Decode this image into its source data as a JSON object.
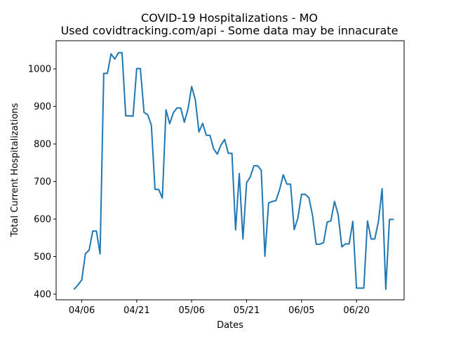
{
  "chart_data": {
    "type": "line",
    "title": "COVID-19 Hospitalizations - MO",
    "subtitle": "Used covidtracking.com/api - Some data may be innacurate",
    "xlabel": "Dates",
    "ylabel": "Total Current Hospitalizations",
    "x_ticks": [
      {
        "date": "2020-04-06",
        "label": "04/06"
      },
      {
        "date": "2020-04-21",
        "label": "04/21"
      },
      {
        "date": "2020-05-06",
        "label": "05/06"
      },
      {
        "date": "2020-05-21",
        "label": "05/21"
      },
      {
        "date": "2020-06-05",
        "label": "06/05"
      },
      {
        "date": "2020-06-20",
        "label": "06/20"
      }
    ],
    "y_ticks": [
      400,
      500,
      600,
      700,
      800,
      900,
      1000
    ],
    "xlim": [
      "2020-03-30",
      "2020-07-03"
    ],
    "ylim": [
      385,
      1075
    ],
    "grid": false,
    "line_color": "#1f77b4",
    "series": [
      {
        "points": [
          [
            "2020-04-04",
            414
          ],
          [
            "2020-04-05",
            425
          ],
          [
            "2020-04-06",
            438
          ],
          [
            "2020-04-07",
            508
          ],
          [
            "2020-04-08",
            517
          ],
          [
            "2020-04-09",
            568
          ],
          [
            "2020-04-10",
            568
          ],
          [
            "2020-04-11",
            507
          ],
          [
            "2020-04-12",
            988
          ],
          [
            "2020-04-13",
            988
          ],
          [
            "2020-04-14",
            1040
          ],
          [
            "2020-04-15",
            1026
          ],
          [
            "2020-04-16",
            1043
          ],
          [
            "2020-04-17",
            1043
          ],
          [
            "2020-04-18",
            875
          ],
          [
            "2020-04-19",
            875
          ],
          [
            "2020-04-20",
            874
          ],
          [
            "2020-04-21",
            1001
          ],
          [
            "2020-04-22",
            1001
          ],
          [
            "2020-04-23",
            884
          ],
          [
            "2020-04-24",
            878
          ],
          [
            "2020-04-25",
            850
          ],
          [
            "2020-04-26",
            679
          ],
          [
            "2020-04-27",
            679
          ],
          [
            "2020-04-28",
            656
          ],
          [
            "2020-04-29",
            891
          ],
          [
            "2020-04-30",
            854
          ],
          [
            "2020-05-01",
            883
          ],
          [
            "2020-05-02",
            896
          ],
          [
            "2020-05-03",
            896
          ],
          [
            "2020-05-04",
            858
          ],
          [
            "2020-05-05",
            893
          ],
          [
            "2020-05-06",
            953
          ],
          [
            "2020-05-07",
            918
          ],
          [
            "2020-05-08",
            832
          ],
          [
            "2020-05-09",
            855
          ],
          [
            "2020-05-10",
            823
          ],
          [
            "2020-05-11",
            823
          ],
          [
            "2020-05-12",
            787
          ],
          [
            "2020-05-13",
            773
          ],
          [
            "2020-05-14",
            797
          ],
          [
            "2020-05-15",
            812
          ],
          [
            "2020-05-16",
            775
          ],
          [
            "2020-05-17",
            775
          ],
          [
            "2020-05-18",
            571
          ],
          [
            "2020-05-19",
            721
          ],
          [
            "2020-05-20",
            547
          ],
          [
            "2020-05-21",
            697
          ],
          [
            "2020-05-22",
            712
          ],
          [
            "2020-05-23",
            742
          ],
          [
            "2020-05-24",
            742
          ],
          [
            "2020-05-25",
            730
          ],
          [
            "2020-05-26",
            501
          ],
          [
            "2020-05-27",
            643
          ],
          [
            "2020-05-28",
            647
          ],
          [
            "2020-05-29",
            649
          ],
          [
            "2020-05-30",
            678
          ],
          [
            "2020-05-31",
            718
          ],
          [
            "2020-06-01",
            693
          ],
          [
            "2020-06-02",
            693
          ],
          [
            "2020-06-03",
            572
          ],
          [
            "2020-06-04",
            603
          ],
          [
            "2020-06-05",
            666
          ],
          [
            "2020-06-06",
            666
          ],
          [
            "2020-06-07",
            657
          ],
          [
            "2020-06-08",
            610
          ],
          [
            "2020-06-09",
            533
          ],
          [
            "2020-06-10",
            533
          ],
          [
            "2020-06-11",
            537
          ],
          [
            "2020-06-12",
            592
          ],
          [
            "2020-06-13",
            595
          ],
          [
            "2020-06-14",
            647
          ],
          [
            "2020-06-15",
            612
          ],
          [
            "2020-06-16",
            526
          ],
          [
            "2020-06-17",
            534
          ],
          [
            "2020-06-18",
            534
          ],
          [
            "2020-06-19",
            594
          ],
          [
            "2020-06-20",
            416
          ],
          [
            "2020-06-21",
            416
          ],
          [
            "2020-06-22",
            416
          ],
          [
            "2020-06-23",
            595
          ],
          [
            "2020-06-24",
            547
          ],
          [
            "2020-06-25",
            547
          ],
          [
            "2020-06-26",
            594
          ],
          [
            "2020-06-27",
            681
          ],
          [
            "2020-06-28",
            413
          ],
          [
            "2020-06-29",
            599
          ],
          [
            "2020-06-30",
            599
          ]
        ]
      }
    ]
  }
}
